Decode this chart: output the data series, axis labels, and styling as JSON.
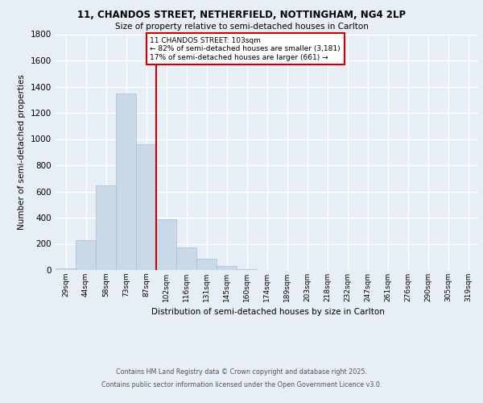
{
  "title_line1": "11, CHANDOS STREET, NETHERFIELD, NOTTINGHAM, NG4 2LP",
  "title_line2": "Size of property relative to semi-detached houses in Carlton",
  "xlabel": "Distribution of semi-detached houses by size in Carlton",
  "ylabel": "Number of semi-detached properties",
  "bin_labels": [
    "29sqm",
    "44sqm",
    "58sqm",
    "73sqm",
    "87sqm",
    "102sqm",
    "116sqm",
    "131sqm",
    "145sqm",
    "160sqm",
    "174sqm",
    "189sqm",
    "203sqm",
    "218sqm",
    "232sqm",
    "247sqm",
    "261sqm",
    "276sqm",
    "290sqm",
    "305sqm",
    "319sqm"
  ],
  "bar_values": [
    15,
    225,
    645,
    1350,
    960,
    390,
    175,
    85,
    30,
    5,
    0,
    0,
    0,
    0,
    0,
    0,
    0,
    0,
    0,
    0,
    0
  ],
  "bar_color": "#c9d9e8",
  "bar_edgecolor": "#a8c0d6",
  "vline_position": 5,
  "vline_color": "#cc0000",
  "property_label": "11 CHANDOS STREET: 103sqm",
  "pct_smaller": 82,
  "n_smaller": 3181,
  "pct_larger": 17,
  "n_larger": 661,
  "ylim": [
    0,
    1800
  ],
  "yticks": [
    0,
    200,
    400,
    600,
    800,
    1000,
    1200,
    1400,
    1600,
    1800
  ],
  "bg_color": "#e8eef5",
  "plot_bg_color": "#e8eef5",
  "grid_color": "#ffffff",
  "footer1": "Contains HM Land Registry data © Crown copyright and database right 2025.",
  "footer2": "Contains public sector information licensed under the Open Government Licence v3.0."
}
